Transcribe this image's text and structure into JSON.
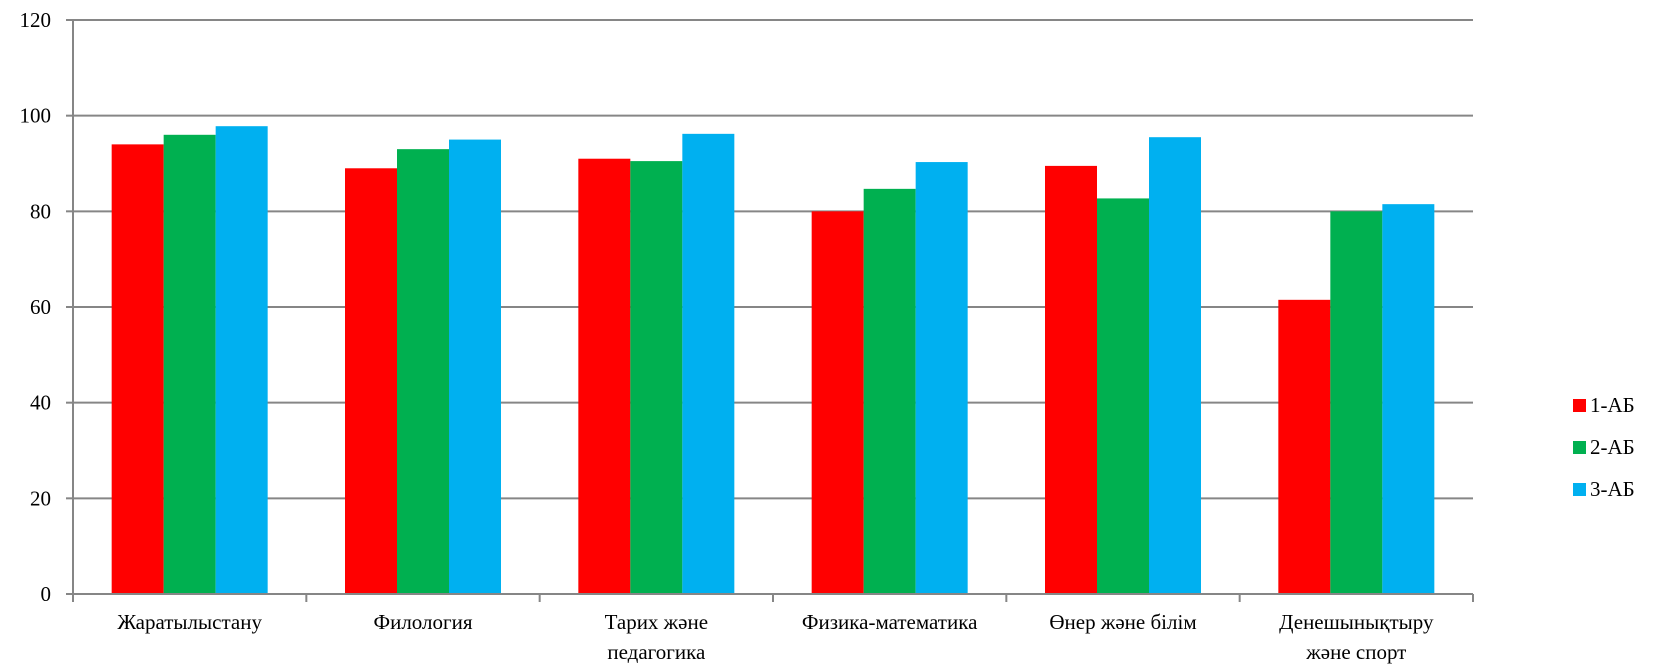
{
  "chart_data": {
    "type": "bar",
    "categories": [
      [
        "Жаратылыстану"
      ],
      [
        "Филология"
      ],
      [
        "Тарих және",
        "педагогика"
      ],
      [
        "Физика-математика"
      ],
      [
        "Өнер және білім"
      ],
      [
        "Денешынықтыру",
        "және спорт"
      ]
    ],
    "series": [
      {
        "name": "1-АБ",
        "color": "#ff0000",
        "values": [
          94,
          89,
          91,
          80,
          89.5,
          61.5
        ]
      },
      {
        "name": "2-АБ",
        "color": "#00b050",
        "values": [
          96,
          93,
          90.5,
          84.7,
          82.7,
          80
        ]
      },
      {
        "name": "3-АБ",
        "color": "#00b0f0",
        "values": [
          97.8,
          95,
          96.2,
          90.3,
          95.5,
          81.5
        ]
      }
    ],
    "ylim": [
      0,
      120
    ],
    "yticks": [
      "0",
      "20",
      "40",
      "60",
      "80",
      "100",
      "120"
    ],
    "grid": true,
    "legend_position": "right"
  }
}
